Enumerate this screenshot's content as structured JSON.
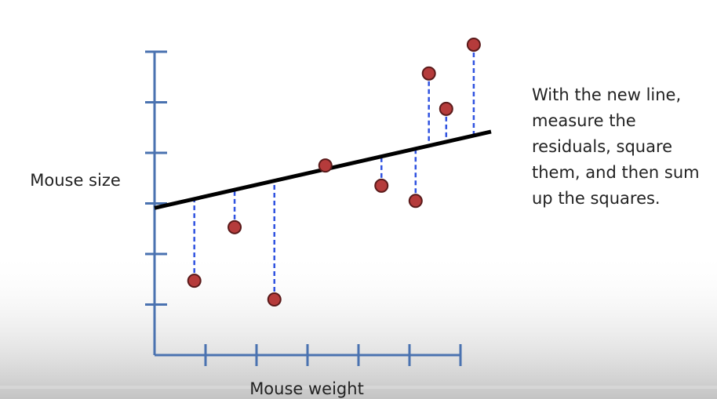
{
  "chart_data": {
    "type": "scatter",
    "x_label": "Mouse weight",
    "y_label": "Mouse size",
    "x": [
      0.78,
      1.57,
      2.35,
      3.35,
      4.45,
      5.12,
      5.38,
      5.72,
      6.26
    ],
    "values": [
      1.47,
      2.53,
      1.1,
      3.75,
      3.35,
      3.05,
      5.57,
      4.87,
      6.14
    ],
    "color": "#b53b3b",
    "fit": {
      "x": [
        0,
        6.6
      ],
      "values": [
        2.91,
        4.42
      ],
      "color": "#000000"
    },
    "residual_color": "#2f52e0",
    "axis_color": "#4a72b0",
    "xlim": [
      0,
      6.6
    ],
    "ylim": [
      0,
      6.5
    ],
    "xticks": [
      1,
      2,
      3,
      4,
      5,
      6
    ],
    "yticks": [
      1,
      2,
      3,
      4,
      5,
      6
    ],
    "annotation_lines": [
      "With the new line,",
      "measure the",
      "residuals, square",
      "them, and then sum",
      "up the squares."
    ]
  }
}
